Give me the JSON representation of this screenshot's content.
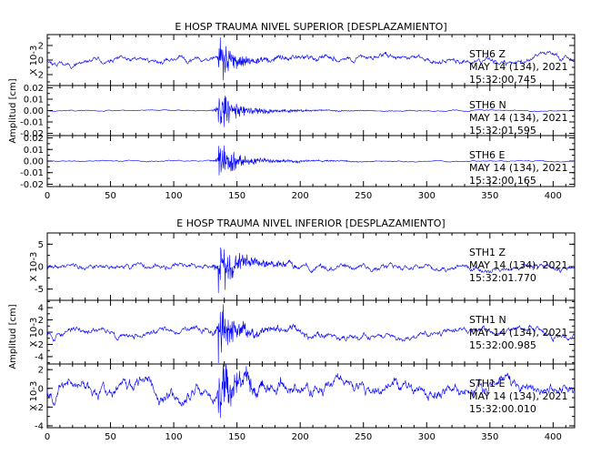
{
  "chart_data": [
    {
      "type": "line",
      "title": "E HOSP TRAUMA NIVEL SUPERIOR [DESPLAZAMIENTO]",
      "ylabel": "Amplitud [cm]",
      "xlim": [
        0,
        417
      ],
      "xticks": [
        0,
        50,
        100,
        150,
        200,
        250,
        300,
        350,
        400
      ],
      "color": "#0000ff",
      "grid": false,
      "panels": [
        {
          "name": "STH6 Z",
          "station": "STH6",
          "component": "Z",
          "date": "MAY 14 (134), 2021",
          "time": "15:32:00.745",
          "scale_label": "X 10-3",
          "ylim": [
            -3.5,
            3.5
          ],
          "yticks": [
            -2,
            0,
            2
          ],
          "ytick_labels": [
            "-2",
            "0",
            "2"
          ],
          "background_amp": 0.6,
          "peak_amp": 3.4,
          "seed": 11
        },
        {
          "name": "STH6 N",
          "station": "STH6",
          "component": "N",
          "date": "MAY 14 (134), 2021",
          "time": "15:32:01.595",
          "scale_label": "",
          "ylim": [
            -0.022,
            0.022
          ],
          "yticks": [
            -0.02,
            -0.01,
            0.0,
            0.01,
            0.02
          ],
          "ytick_labels": [
            "-0.02",
            "-0.01",
            "0.00",
            "0.01",
            "0.02"
          ],
          "background_amp": 0.0007,
          "peak_amp": 0.021,
          "seed": 23
        },
        {
          "name": "STH6 E",
          "station": "STH6",
          "component": "E",
          "date": "MAY 14 (134), 2021",
          "time": "15:32:00.165",
          "scale_label": "",
          "ylim": [
            -0.022,
            0.022
          ],
          "yticks": [
            -0.02,
            -0.01,
            0.0,
            0.01,
            0.02
          ],
          "ytick_labels": [
            "-0.02",
            "-0.01",
            "0.00",
            "0.01",
            "0.02"
          ],
          "background_amp": 0.0007,
          "peak_amp": 0.021,
          "seed": 37
        }
      ]
    },
    {
      "type": "line",
      "title": "E HOSP TRAUMA NIVEL INFERIOR [DESPLAZAMIENTO]",
      "ylabel": "Amplitud [cm]",
      "xlim": [
        0,
        417
      ],
      "xticks": [
        0,
        50,
        100,
        150,
        200,
        250,
        300,
        350,
        400
      ],
      "color": "#0000ff",
      "grid": false,
      "panels": [
        {
          "name": "STH1 Z",
          "station": "STH1",
          "component": "Z",
          "date": "MAY 14 (134), 2021",
          "time": "15:32:01.770",
          "scale_label": "X 10-3",
          "ylim": [
            -7.5,
            7.5
          ],
          "yticks": [
            -5,
            0,
            5
          ],
          "ytick_labels": [
            "-5",
            "0",
            "5"
          ],
          "background_amp": 1.0,
          "peak_amp": 7.2,
          "seed": 41
        },
        {
          "name": "STH1 N",
          "station": "STH1",
          "component": "N",
          "date": "MAY 14 (134), 2021",
          "time": "15:32:00.985",
          "scale_label": "X 10-3",
          "ylim": [
            -5.2,
            5.2
          ],
          "yticks": [
            -4,
            -2,
            0,
            2,
            4
          ],
          "ytick_labels": [
            "-4",
            "-2",
            "0",
            "2",
            "4"
          ],
          "background_amp": 0.9,
          "peak_amp": 5.0,
          "seed": 53
        },
        {
          "name": "STH1 E",
          "station": "STH1",
          "component": "E",
          "date": "MAY 14 (134), 2021",
          "time": "15:32:00.010",
          "scale_label": "X 10-3",
          "ylim": [
            -4.2,
            2.6
          ],
          "yticks": [
            -4,
            -2,
            0,
            2
          ],
          "ytick_labels": [
            "-4",
            "-2",
            "0",
            "2"
          ],
          "background_amp": 1.1,
          "peak_amp": 3.9,
          "seed": 67
        }
      ]
    }
  ]
}
